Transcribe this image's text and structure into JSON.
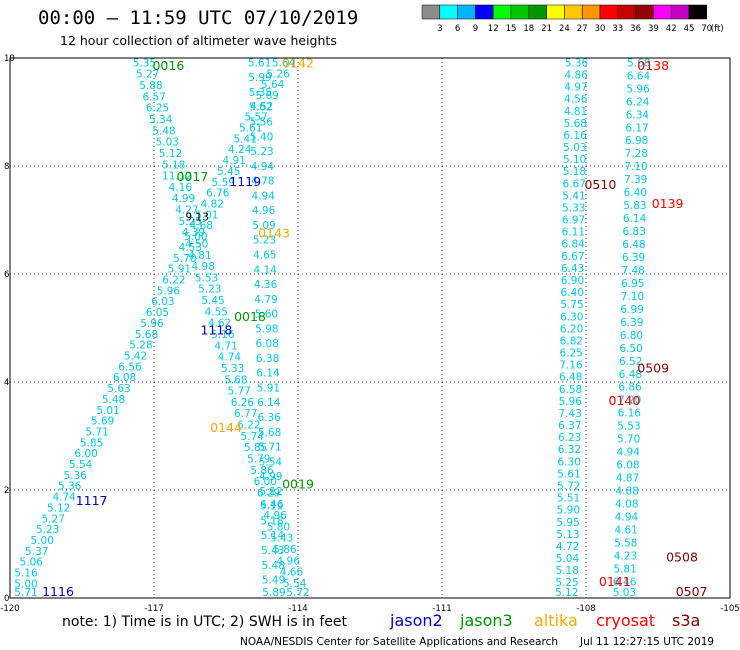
{
  "chart_data": {
    "type": "scatter",
    "title": "00:00 – 11:59 UTC 07/10/2019",
    "subtitle": "12 hour collection of altimeter wave heights",
    "x_ticks": [
      "-120",
      "-117",
      "-114",
      "-111",
      "-108",
      "-105"
    ],
    "y_ticks": [
      "0",
      "2",
      "4",
      "6",
      "8",
      "10"
    ],
    "xlim": [
      -120,
      -105
    ],
    "ylim": [
      0,
      10
    ],
    "grid": true,
    "colorbar": {
      "labels": [
        "3",
        "6",
        "9",
        "12",
        "15",
        "18",
        "21",
        "24",
        "27",
        "30",
        "33",
        "36",
        "39",
        "42",
        "45",
        "70"
      ],
      "unit": "(ft)",
      "colors": [
        "#8c8c8c",
        "#00ffff",
        "#00b4ff",
        "#0000ff",
        "#00ff00",
        "#00c800",
        "#009600",
        "#ffff00",
        "#ffc800",
        "#ff9600",
        "#ff0000",
        "#c80000",
        "#960000",
        "#ff00ff",
        "#c800c8",
        "#000000"
      ]
    },
    "note": "note:  1) Time is in UTC; 2) SWH is in feet",
    "legend": [
      {
        "name": "jason2",
        "color": "#0000cc"
      },
      {
        "name": "jason3",
        "color": "#009600"
      },
      {
        "name": "altika",
        "color": "#ffa500"
      },
      {
        "name": "cryosat",
        "color": "#ff0000"
      },
      {
        "name": "s3a",
        "color": "#800000"
      }
    ],
    "credit": "NOAA/NESDIS Center for Satellite Applications and Research",
    "timestamp": "Jul 11 12:27:15 UTC 2019",
    "colors": {
      "swh": "#00c8e6",
      "swh_dark": "#000000",
      "swh_blue": "#0000cc",
      "swh_orange": "#ffa500",
      "jason2": "#0000cc",
      "jason3": "#009600",
      "altika": "#ffa500",
      "cryosat": "#ff0000",
      "s3a": "#800000"
    },
    "tracks": [
      {
        "name": "track-a",
        "style": "swh",
        "x0": -117.2,
        "y0": 9.9,
        "x1": -114.0,
        "y1": 0.05,
        "values": [
          "5.35",
          "5.27",
          "5.88",
          "6.57",
          "6.25",
          "5.34",
          "5.48",
          "5.03",
          "5.12",
          "5.18",
          "11.12",
          "4.16",
          "4.99",
          "4.27",
          "5.25",
          "4.39",
          "4.50",
          "4.81",
          "4.98",
          "5.53",
          "5.23",
          "5.45",
          "4.55",
          "4.62",
          "5.16",
          "4.71",
          "4.74",
          "5.33",
          "5.68",
          "5.77",
          "6.26",
          "6.77",
          "6.22",
          "5.74",
          "5.85",
          "5.79",
          "5.86",
          "6.00",
          "6.29",
          "6.46",
          "4.96",
          "5.80",
          "5.43",
          "5.86",
          "4.96",
          "4.66",
          "5.54",
          "5.72"
        ]
      },
      {
        "name": "track-b",
        "style": "swh",
        "x0": -114.3,
        "y0": 9.9,
        "x1": -119.9,
        "y1": 0.05,
        "values": [
          "5.64",
          "5.26",
          "5.64",
          "5.69",
          "4.52",
          "5.57",
          "5.61",
          "5.41",
          "4.24",
          "4.91",
          "5.45",
          "5.59",
          "6.76",
          "4.82",
          "5.01",
          "4.68",
          "5.00",
          "4.53",
          "5.70",
          "5.91",
          "6.22",
          "5.96",
          "6.03",
          "6.05",
          "5.96",
          "5.68",
          "5.28",
          "5.42",
          "6.56",
          "6.08",
          "5.63",
          "5.48",
          "5.01",
          "5.69",
          "5.71",
          "5.85",
          "6.00",
          "5.54",
          "5.36",
          "5.36",
          "4.74",
          "5.12",
          "5.27",
          "5.23",
          "5.00",
          "5.37",
          "5.06",
          "5.16",
          "5.00",
          "5.71"
        ]
      },
      {
        "name": "track-c",
        "style": "swh",
        "x0": -114.8,
        "y0": 9.9,
        "x1": -114.5,
        "y1": 0.05,
        "values": [
          "5.61",
          "5.99",
          "5.35",
          "5.62",
          "5.56",
          "5.40",
          "5.23",
          "4.94",
          "4.78",
          "4.94",
          "4.96",
          "5.09",
          "5.23",
          "4.65",
          "4.14",
          "4.36",
          "4.79",
          "5.60",
          "5.98",
          "6.08",
          "6.38",
          "6.14",
          "5.91",
          "6.14",
          "6.36",
          "5.68",
          "5.71",
          "5.54",
          "4.99",
          "5.12",
          "5.19",
          "5.18",
          "5.14",
          "5.43",
          "5.48",
          "5.49",
          "5.89"
        ]
      },
      {
        "name": "track-d",
        "style": "swh",
        "x0": -108.2,
        "y0": 9.9,
        "x1": -108.4,
        "y1": 0.05,
        "values": [
          "5.36",
          "4.86",
          "4.97",
          "4.56",
          "4.81",
          "5.68",
          "6.16",
          "5.03",
          "5.10",
          "5.18",
          "6.67",
          "5.41",
          "5.33",
          "6.97",
          "6.11",
          "6.84",
          "6.67",
          "6.43",
          "6.90",
          "6.40",
          "5.75",
          "6.30",
          "6.20",
          "6.82",
          "6.25",
          "7.16",
          "6.48",
          "6.58",
          "5.96",
          "7.43",
          "6.37",
          "6.23",
          "6.32",
          "6.30",
          "5.61",
          "5.72",
          "5.51",
          "5.90",
          "5.95",
          "5.13",
          "4.72",
          "5.04",
          "5.18",
          "5.25",
          "5.12"
        ]
      },
      {
        "name": "track-e",
        "style": "swh",
        "x0": -106.9,
        "y0": 9.9,
        "x1": -107.2,
        "y1": 0.05,
        "values": [
          "5.68",
          "6.64",
          "5.96",
          "6.24",
          "6.34",
          "6.17",
          "6.98",
          "7.28",
          "7.10",
          "7.39",
          "6.40",
          "5.83",
          "6.14",
          "6.83",
          "6.48",
          "6.39",
          "7.48",
          "6.95",
          "7.10",
          "6.99",
          "6.39",
          "6.80",
          "6.50",
          "6.52",
          "6.48",
          "6.86",
          "7.20",
          "6.16",
          "5.53",
          "5.70",
          "4.94",
          "6.08",
          "4.87",
          "4.88",
          "4.08",
          "4.94",
          "4.61",
          "5.58",
          "4.23",
          "5.81",
          "6.46",
          "5.03"
        ]
      }
    ],
    "singles": [
      {
        "text": "9.13",
        "x": -116.1,
        "y": 7.05,
        "style": "swh_dark"
      }
    ],
    "satellite_labels": [
      {
        "text": "0016",
        "x": -116.7,
        "y": 9.85,
        "sat": "jason3"
      },
      {
        "text": "0142",
        "x": -114.0,
        "y": 9.9,
        "sat": "altika"
      },
      {
        "text": "0138",
        "x": -106.6,
        "y": 9.85,
        "sat": "cryosat"
      },
      {
        "text": "0017",
        "x": -116.2,
        "y": 7.8,
        "sat": "jason3"
      },
      {
        "text": "1119",
        "x": -115.1,
        "y": 7.7,
        "sat": "jason2"
      },
      {
        "text": "0510",
        "x": -107.7,
        "y": 7.65,
        "sat": "s3a"
      },
      {
        "text": "0139",
        "x": -106.3,
        "y": 7.3,
        "sat": "cryosat"
      },
      {
        "text": "0143",
        "x": -114.5,
        "y": 6.75,
        "sat": "altika"
      },
      {
        "text": "0018",
        "x": -115.0,
        "y": 5.2,
        "sat": "jason3"
      },
      {
        "text": "1118",
        "x": -115.7,
        "y": 4.95,
        "sat": "jason2"
      },
      {
        "text": "0509",
        "x": -106.6,
        "y": 4.25,
        "sat": "s3a"
      },
      {
        "text": "0140",
        "x": -107.2,
        "y": 3.65,
        "sat": "cryosat"
      },
      {
        "text": "0144",
        "x": -115.5,
        "y": 3.15,
        "sat": "altika"
      },
      {
        "text": "0019",
        "x": -114.0,
        "y": 2.1,
        "sat": "jason3"
      },
      {
        "text": "1117",
        "x": -118.3,
        "y": 1.8,
        "sat": "jason2"
      },
      {
        "text": "0508",
        "x": -106.0,
        "y": 0.75,
        "sat": "s3a"
      },
      {
        "text": "0141",
        "x": -107.4,
        "y": 0.3,
        "sat": "cryosat"
      },
      {
        "text": "0507",
        "x": -105.8,
        "y": 0.0,
        "sat": "s3a"
      },
      {
        "text": "1116",
        "x": -119.0,
        "y": 0.0,
        "sat": "jason2"
      }
    ]
  }
}
